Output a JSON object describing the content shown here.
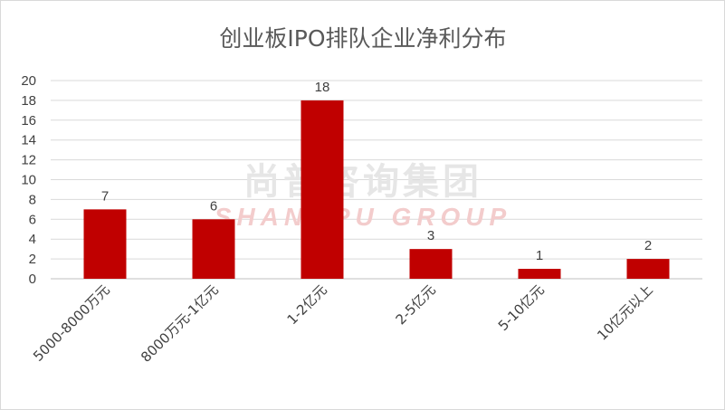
{
  "chart_data": {
    "type": "bar",
    "title": "创业板IPO排队企业净利分布",
    "categories": [
      "5000-8000万元",
      "8000万元-1亿元",
      "1-2亿元",
      "2-5亿元",
      "5-10亿元",
      "10亿元以上"
    ],
    "values": [
      7,
      6,
      18,
      3,
      1,
      2
    ],
    "ylim": [
      0,
      20
    ],
    "yticks": [
      0,
      2,
      4,
      6,
      8,
      10,
      12,
      14,
      16,
      18,
      20
    ],
    "grid": true,
    "data_labels": true,
    "legend": "none",
    "bar_color": "#C00000"
  },
  "watermark": {
    "line1": "尚普咨询集团",
    "line2": "SHANGPU GROUP"
  }
}
